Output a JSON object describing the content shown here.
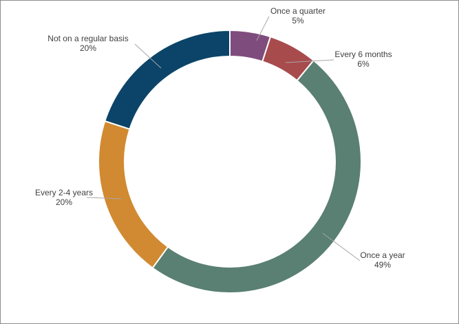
{
  "chart_data": {
    "type": "pie",
    "subtype": "doughnut",
    "title": "",
    "categories": [
      "Once a quarter",
      "Every 6 months",
      "Once a year",
      "Every 2-4 years",
      "Not on a regular basis"
    ],
    "values": [
      5,
      6,
      49,
      20,
      20
    ],
    "value_labels": [
      "5%",
      "6%",
      "49%",
      "20%",
      "20%"
    ],
    "colors": [
      "#7f4c7e",
      "#a84b4d",
      "#5a7f73",
      "#d18a32",
      "#0b4468"
    ],
    "start_angle_deg": 0,
    "direction": "clockwise",
    "legend": "none",
    "data_labels": "outside with leader lines"
  }
}
